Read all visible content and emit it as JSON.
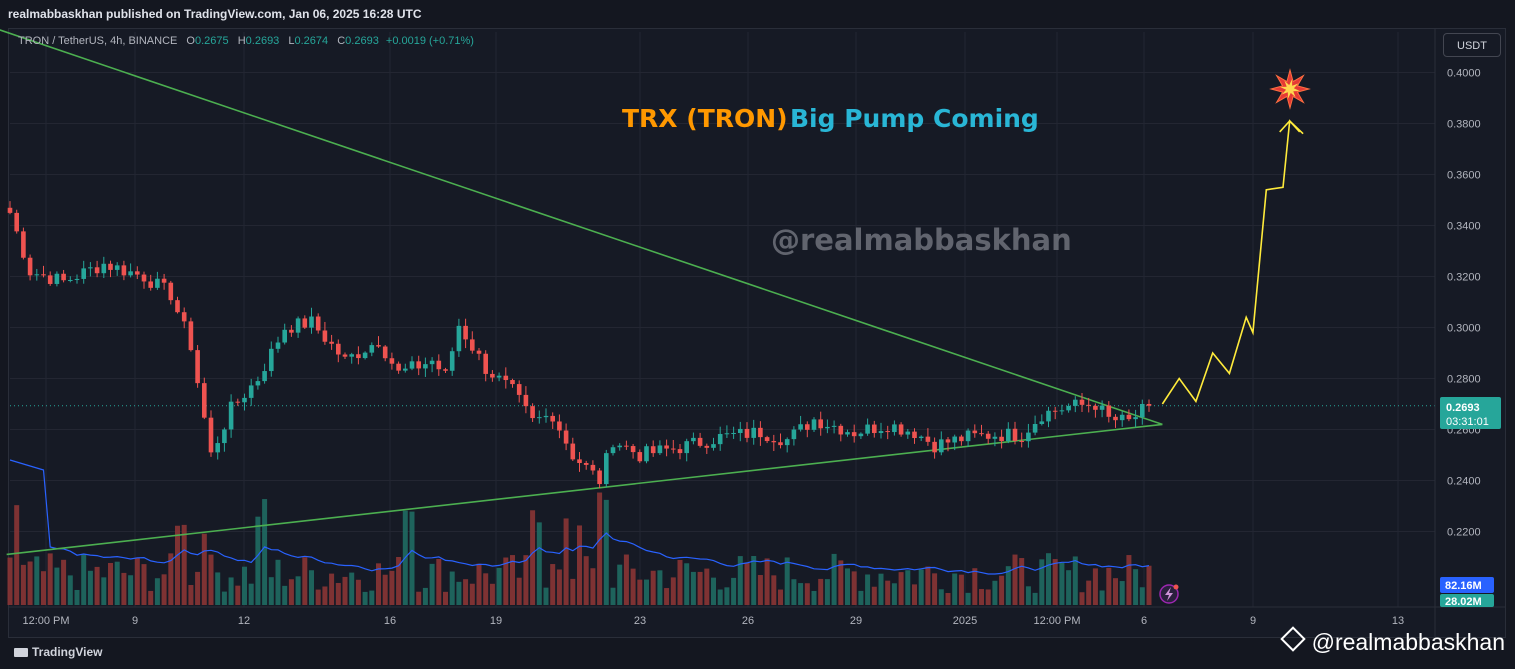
{
  "header": {
    "publish_line": "realmabbaskhan published on TradingView.com, Jan 06, 2025 16:28 UTC"
  },
  "legend": {
    "symbol": "TRON / TetherUS, 4h, BINANCE",
    "o_label": "O",
    "o_value": "0.2675",
    "h_label": "H",
    "h_value": "0.2693",
    "l_label": "L",
    "l_value": "0.2674",
    "c_label": "C",
    "c_value": "0.2693",
    "change": "+0.0019 (+0.71%)"
  },
  "currency_label": "USDT",
  "annotations": {
    "title_part1": "TRX (TRON)",
    "title_part2": "Big Pump Coming",
    "watermark": "@realmabbaskhan",
    "explosion_icon": "collision-icon"
  },
  "price_tag": {
    "value": "0.2693",
    "countdown": "03:31:01"
  },
  "volume_tags": {
    "volume": "82.16M",
    "volume_ma": "28.02M"
  },
  "footer": {
    "brand": "TradingView",
    "watermark": "@realmabbaskhan"
  },
  "colors": {
    "background": "#161a25",
    "up": "#26a69a",
    "down": "#ef5350",
    "trendline": "#4caf50",
    "projection": "#ffeb3b",
    "title_orange": "#ff9800",
    "title_cyan": "#29b6d6",
    "volume_ma": "#2962ff",
    "grid": "#232632"
  },
  "chart_data": {
    "type": "candlestick",
    "interval": "4h",
    "y_ticks": [
      "0.4000",
      "0.3800",
      "0.3600",
      "0.3400",
      "0.3200",
      "0.3000",
      "0.2800",
      "0.2600",
      "0.2400",
      "0.2200"
    ],
    "ylim": [
      0.205,
      0.413
    ],
    "x_ticks": [
      "12:00 PM",
      "9",
      "12",
      "16",
      "19",
      "23",
      "26",
      "29",
      "2025",
      "12:00 PM",
      "6",
      "9",
      "13"
    ],
    "last_price": 0.2693,
    "price_path": [
      [
        0,
        0.345
      ],
      [
        3,
        0.322
      ],
      [
        8,
        0.318
      ],
      [
        14,
        0.325
      ],
      [
        20,
        0.32
      ],
      [
        24,
        0.313
      ],
      [
        27,
        0.293
      ],
      [
        30,
        0.25
      ],
      [
        33,
        0.268
      ],
      [
        37,
        0.28
      ],
      [
        41,
        0.3
      ],
      [
        45,
        0.302
      ],
      [
        50,
        0.287
      ],
      [
        55,
        0.295
      ],
      [
        58,
        0.282
      ],
      [
        63,
        0.287
      ],
      [
        65,
        0.281
      ],
      [
        67,
        0.301
      ],
      [
        71,
        0.284
      ],
      [
        75,
        0.275
      ],
      [
        78,
        0.263
      ],
      [
        81,
        0.266
      ],
      [
        84,
        0.25
      ],
      [
        86,
        0.245
      ],
      [
        88,
        0.24
      ],
      [
        90,
        0.256
      ],
      [
        94,
        0.25
      ],
      [
        100,
        0.253
      ],
      [
        106,
        0.257
      ],
      [
        112,
        0.259
      ],
      [
        116,
        0.256
      ],
      [
        120,
        0.264
      ],
      [
        126,
        0.259
      ],
      [
        131,
        0.262
      ],
      [
        135,
        0.259
      ],
      [
        138,
        0.254
      ],
      [
        143,
        0.257
      ],
      [
        147,
        0.258
      ],
      [
        151,
        0.258
      ],
      [
        154,
        0.266
      ],
      [
        158,
        0.269
      ],
      [
        162,
        0.27
      ],
      [
        164,
        0.264
      ],
      [
        167,
        0.263
      ],
      [
        170,
        0.2693
      ]
    ],
    "n_bars": 171,
    "descending_trendline": [
      [
        -3,
        0.418
      ],
      [
        172,
        0.262
      ]
    ],
    "ascending_trendline": [
      [
        -0.5,
        0.211
      ],
      [
        172,
        0.262
      ]
    ],
    "projection_path": [
      [
        172,
        0.27
      ],
      [
        174.5,
        0.28
      ],
      [
        177,
        0.271
      ],
      [
        179.5,
        0.29
      ],
      [
        182,
        0.282
      ],
      [
        184.5,
        0.304
      ],
      [
        185.5,
        0.298
      ],
      [
        187.5,
        0.354
      ],
      [
        190,
        0.355
      ],
      [
        191,
        0.381
      ],
      [
        193,
        0.376
      ]
    ]
  }
}
